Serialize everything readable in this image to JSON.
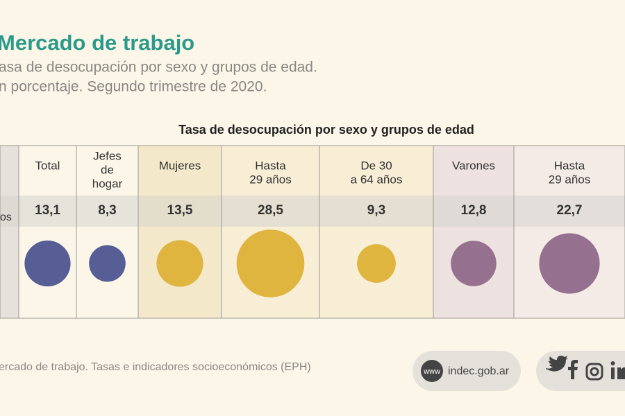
{
  "header": {
    "title": "Mercado de trabajo",
    "subtitle_lines": [
      "asa de desocupación por sexo y grupos de edad.",
      "n porcentaje. Segundo trimestre de 2020."
    ]
  },
  "chart_data": {
    "type": "bubble",
    "title": "Tasa de desocupación por sexo y grupos de edad",
    "row_label": "os",
    "categories": [
      [
        "Total"
      ],
      [
        "Jefes",
        "de",
        "hogar"
      ],
      [
        "Mujeres"
      ],
      [
        "Hasta",
        "29 años"
      ],
      [
        "De 30",
        "a 64 años"
      ],
      [
        "Varones"
      ],
      [
        "Hasta",
        "29 años"
      ]
    ],
    "values": [
      13.1,
      8.3,
      13.5,
      28.5,
      9.3,
      12.8,
      22.7
    ],
    "value_labels": [
      "13,1",
      "8,3",
      "13,5",
      "28,5",
      "9,3",
      "12,8",
      "22,7"
    ],
    "colors": [
      "#565e95",
      "#565e95",
      "#dfb540",
      "#dfb540",
      "#dfb540",
      "#96718f",
      "#96718f"
    ]
  },
  "footer": {
    "source": "ercado de trabajo. Tasas e indicadores socioeconómicos (EPH)",
    "www": "www",
    "site": "indec.gob.ar"
  }
}
